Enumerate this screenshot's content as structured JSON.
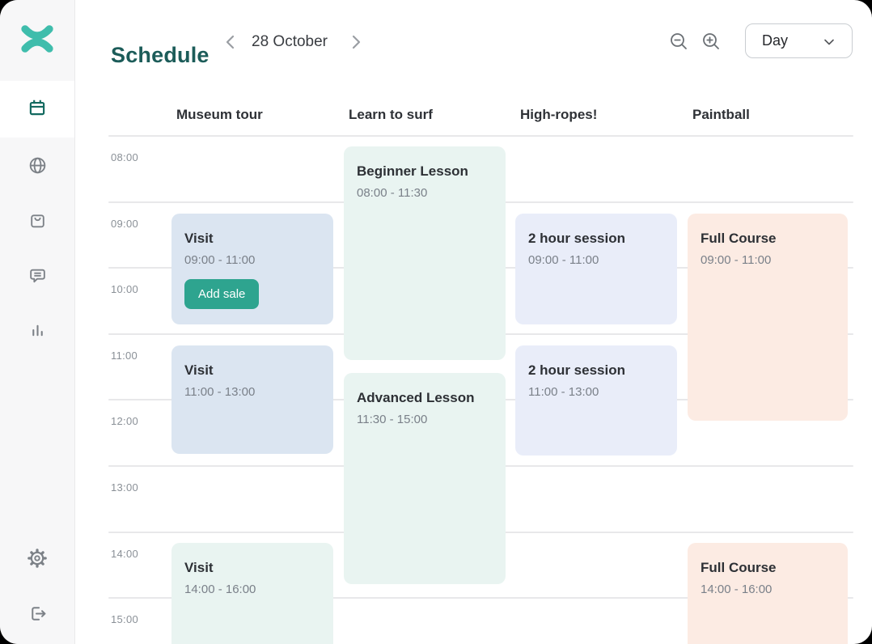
{
  "sidebar": {
    "logo": "xola-logo",
    "items": [
      {
        "label": "Schedule",
        "icon": "calendar-icon",
        "active": true
      },
      {
        "label": "Web",
        "icon": "globe-icon",
        "active": false
      },
      {
        "label": "Purchases",
        "icon": "shopping-bag-icon",
        "active": false
      },
      {
        "label": "Messages",
        "icon": "message-icon",
        "active": false
      },
      {
        "label": "Reports",
        "icon": "bar-chart-icon",
        "active": false
      },
      {
        "label": "Settings",
        "icon": "gear-icon",
        "active": false
      },
      {
        "label": "Log out",
        "icon": "logout-icon",
        "active": false
      }
    ]
  },
  "header": {
    "title": "Schedule",
    "date": "28 October",
    "prev_icon": "chevron-left-icon",
    "next_icon": "chevron-right-icon",
    "zoom_out_icon": "zoom-out-icon",
    "zoom_in_icon": "zoom-in-icon",
    "view_selector": {
      "value": "Day",
      "icon": "chevron-down-icon"
    }
  },
  "colors": {
    "brand_teal": "#3fbdac",
    "title_teal": "#1c5c59",
    "button_teal": "#2ea48f",
    "event_blue": "#dbe5f1",
    "event_mint": "#e9f4f1",
    "event_lavender": "#e9edf9",
    "event_peach": "#fcebe3",
    "gridline": "#e8e8ea",
    "sidebar_bg": "#f7f7f8"
  },
  "schedule": {
    "time_labels": [
      "08:00",
      "09:00",
      "10:00",
      "11:00",
      "12:00",
      "13:00",
      "14:00",
      "15:00"
    ],
    "columns": [
      {
        "label": "Museum tour",
        "events": [
          {
            "title": "Visit",
            "time": "09:00 - 11:00",
            "action_label": "Add sale",
            "color": "blue"
          },
          {
            "title": "Visit",
            "time": "11:00 - 13:00",
            "color": "blue"
          },
          {
            "title": "Visit",
            "time": "14:00 - 16:00",
            "color": "mint"
          }
        ]
      },
      {
        "label": "Learn to surf",
        "events": [
          {
            "title": "Beginner Lesson",
            "time": "08:00 - 11:30",
            "color": "mint"
          },
          {
            "title": "Advanced Lesson",
            "time": "11:30 - 15:00",
            "color": "mint"
          }
        ]
      },
      {
        "label": "High-ropes!",
        "events": [
          {
            "title": "2 hour session",
            "time": "09:00 - 11:00",
            "color": "lavender"
          },
          {
            "title": "2 hour session",
            "time": "11:00 - 13:00",
            "color": "lavender"
          }
        ]
      },
      {
        "label": "Paintball",
        "events": [
          {
            "title": "Full Course",
            "time": "09:00 - 11:00",
            "color": "peach"
          },
          {
            "title": "Full Course",
            "time": "14:00 - 16:00",
            "color": "peach"
          }
        ]
      }
    ]
  }
}
